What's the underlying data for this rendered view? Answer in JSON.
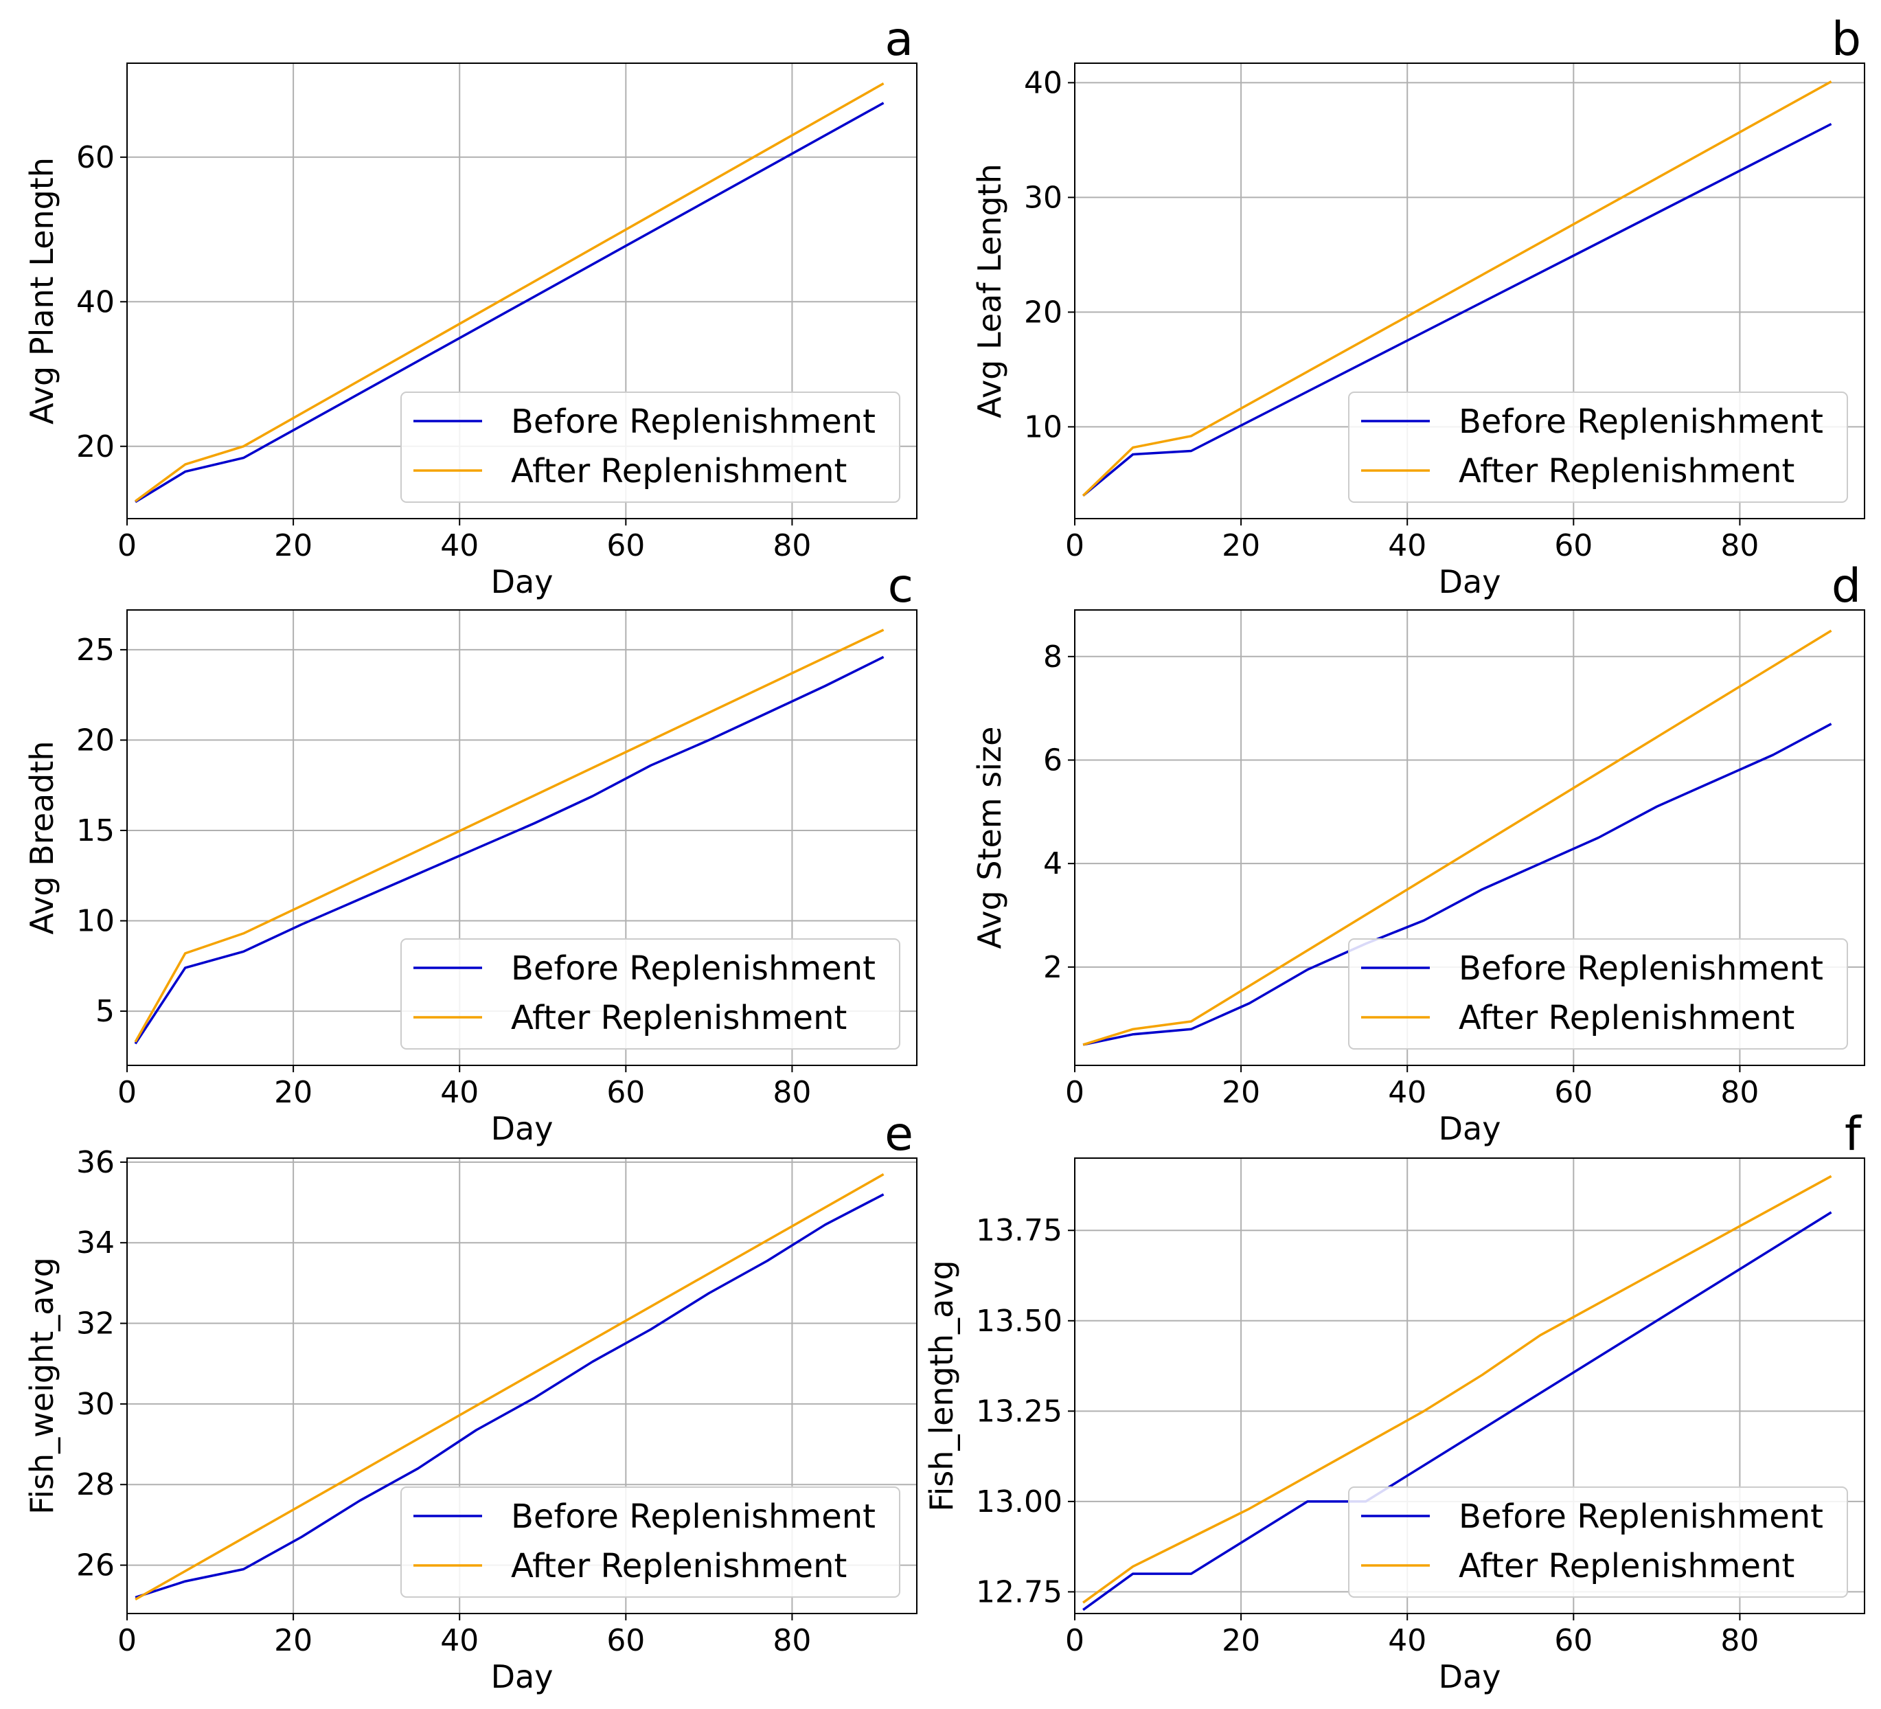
{
  "figure": {
    "series_names": [
      "Before Replenishment",
      "After Replenishment"
    ],
    "series_colors": [
      "#0000cc",
      "#f5a300"
    ],
    "grid": true,
    "legend_position": "lower-right"
  },
  "chart_data": [
    {
      "type": "line",
      "panel": "a",
      "xlabel": "Day",
      "ylabel": "Avg Plant Length",
      "xlim": [
        0,
        95
      ],
      "ylim": [
        10,
        73
      ],
      "xticks": [
        0,
        20,
        40,
        60,
        80
      ],
      "xtick_labels": [
        "0",
        "20",
        "40",
        "60",
        "80"
      ],
      "yticks": [
        20,
        40,
        60
      ],
      "ytick_labels": [
        "20",
        "40",
        "60"
      ],
      "legend": [
        "Before Replenishment",
        "After Replenishment"
      ],
      "series": [
        {
          "name": "Before Replenishment",
          "color": "#0000cc",
          "x": [
            1,
            7,
            14,
            91
          ],
          "y": [
            12.3,
            16.5,
            18.4,
            67.5
          ]
        },
        {
          "name": "After Replenishment",
          "color": "#f5a300",
          "x": [
            1,
            7,
            14,
            91
          ],
          "y": [
            12.4,
            17.5,
            20.0,
            70.2
          ]
        }
      ]
    },
    {
      "type": "line",
      "panel": "b",
      "xlabel": "Day",
      "ylabel": "Avg Leaf Length",
      "xlim": [
        0,
        95
      ],
      "ylim": [
        2,
        41.7
      ],
      "xticks": [
        0,
        20,
        40,
        60,
        80
      ],
      "xtick_labels": [
        "0",
        "20",
        "40",
        "60",
        "80"
      ],
      "yticks": [
        10,
        20,
        30,
        40
      ],
      "ytick_labels": [
        "10",
        "20",
        "30",
        "40"
      ],
      "legend": [
        "Before Replenishment",
        "After Replenishment"
      ],
      "series": [
        {
          "name": "Before Replenishment",
          "color": "#0000cc",
          "x": [
            1,
            7,
            14,
            91
          ],
          "y": [
            4.0,
            7.6,
            7.9,
            36.4
          ]
        },
        {
          "name": "After Replenishment",
          "color": "#f5a300",
          "x": [
            1,
            7,
            14,
            91
          ],
          "y": [
            4.0,
            8.2,
            9.2,
            40.1
          ]
        }
      ]
    },
    {
      "type": "line",
      "panel": "c",
      "xlabel": "Day",
      "ylabel": "Avg Breadth",
      "xlim": [
        0,
        95
      ],
      "ylim": [
        2,
        27.2
      ],
      "xticks": [
        0,
        20,
        40,
        60,
        80
      ],
      "xtick_labels": [
        "0",
        "20",
        "40",
        "60",
        "80"
      ],
      "yticks": [
        5,
        10,
        15,
        20,
        25
      ],
      "ytick_labels": [
        "5",
        "10",
        "15",
        "20",
        "25"
      ],
      "legend": [
        "Before Replenishment",
        "After Replenishment"
      ],
      "series": [
        {
          "name": "Before Replenishment",
          "color": "#0000cc",
          "x": [
            1,
            7,
            14,
            21,
            28,
            35,
            42,
            49,
            56,
            63,
            70,
            77,
            84,
            91
          ],
          "y": [
            3.2,
            7.4,
            8.3,
            9.8,
            11.2,
            12.6,
            14.0,
            15.4,
            16.9,
            18.6,
            20.0,
            21.5,
            23.0,
            24.6
          ]
        },
        {
          "name": "After Replenishment",
          "color": "#f5a300",
          "x": [
            1,
            7,
            14,
            91
          ],
          "y": [
            3.3,
            8.2,
            9.3,
            26.1
          ]
        }
      ]
    },
    {
      "type": "line",
      "panel": "d",
      "xlabel": "Day",
      "ylabel": "Avg Stem size",
      "xlim": [
        0,
        95
      ],
      "ylim": [
        0.1,
        8.9
      ],
      "xticks": [
        0,
        20,
        40,
        60,
        80
      ],
      "xtick_labels": [
        "0",
        "20",
        "40",
        "60",
        "80"
      ],
      "yticks": [
        2,
        4,
        6,
        8
      ],
      "ytick_labels": [
        "2",
        "4",
        "6",
        "8"
      ],
      "legend": [
        "Before Replenishment",
        "After Replenishment"
      ],
      "series": [
        {
          "name": "Before Replenishment",
          "color": "#0000cc",
          "x": [
            1,
            7,
            14,
            21,
            28,
            35,
            42,
            49,
            56,
            63,
            70,
            77,
            84,
            91
          ],
          "y": [
            0.5,
            0.7,
            0.8,
            1.3,
            1.95,
            2.45,
            2.9,
            3.5,
            4.0,
            4.5,
            5.1,
            5.6,
            6.1,
            6.7
          ]
        },
        {
          "name": "After Replenishment",
          "color": "#f5a300",
          "x": [
            1,
            7,
            14,
            91
          ],
          "y": [
            0.5,
            0.8,
            0.95,
            8.5
          ]
        }
      ]
    },
    {
      "type": "line",
      "panel": "e",
      "xlabel": "Day",
      "ylabel": "Fish_weight_avg",
      "xlim": [
        0,
        95
      ],
      "ylim": [
        24.8,
        36.1
      ],
      "xticks": [
        0,
        20,
        40,
        60,
        80
      ],
      "xtick_labels": [
        "0",
        "20",
        "40",
        "60",
        "80"
      ],
      "yticks": [
        26,
        28,
        30,
        32,
        34,
        36
      ],
      "ytick_labels": [
        "26",
        "28",
        "30",
        "32",
        "34",
        "36"
      ],
      "legend": [
        "Before Replenishment",
        "After Replenishment"
      ],
      "series": [
        {
          "name": "Before Replenishment",
          "color": "#0000cc",
          "x": [
            1,
            7,
            14,
            21,
            28,
            35,
            42,
            49,
            56,
            63,
            70,
            77,
            84,
            91
          ],
          "y": [
            25.2,
            25.6,
            25.9,
            26.7,
            27.6,
            28.4,
            29.35,
            30.15,
            31.05,
            31.85,
            32.75,
            33.55,
            34.45,
            35.2
          ]
        },
        {
          "name": "After Replenishment",
          "color": "#f5a300",
          "x": [
            1,
            91
          ],
          "y": [
            25.15,
            35.7
          ]
        }
      ]
    },
    {
      "type": "line",
      "panel": "f",
      "xlabel": "Day",
      "ylabel": "Fish_length_avg",
      "xlim": [
        0,
        95
      ],
      "ylim": [
        12.69,
        13.95
      ],
      "xticks": [
        0,
        20,
        40,
        60,
        80
      ],
      "xtick_labels": [
        "0",
        "20",
        "40",
        "60",
        "80"
      ],
      "yticks": [
        12.75,
        13.0,
        13.25,
        13.5,
        13.75
      ],
      "ytick_labels": [
        "12.75",
        "13.00",
        "13.25",
        "13.50",
        "13.75"
      ],
      "legend": [
        "Before Replenishment",
        "After Replenishment"
      ],
      "series": [
        {
          "name": "Before Replenishment",
          "color": "#0000cc",
          "x": [
            1,
            7,
            14,
            21,
            28,
            35,
            91
          ],
          "y": [
            12.7,
            12.8,
            12.8,
            12.9,
            13.0,
            13.0,
            13.8
          ]
        },
        {
          "name": "After Replenishment",
          "color": "#f5a300",
          "x": [
            1,
            7,
            14,
            21,
            28,
            35,
            42,
            49,
            56,
            91
          ],
          "y": [
            12.72,
            12.82,
            12.9,
            12.98,
            13.07,
            13.16,
            13.25,
            13.35,
            13.46,
            13.9
          ]
        }
      ]
    }
  ]
}
